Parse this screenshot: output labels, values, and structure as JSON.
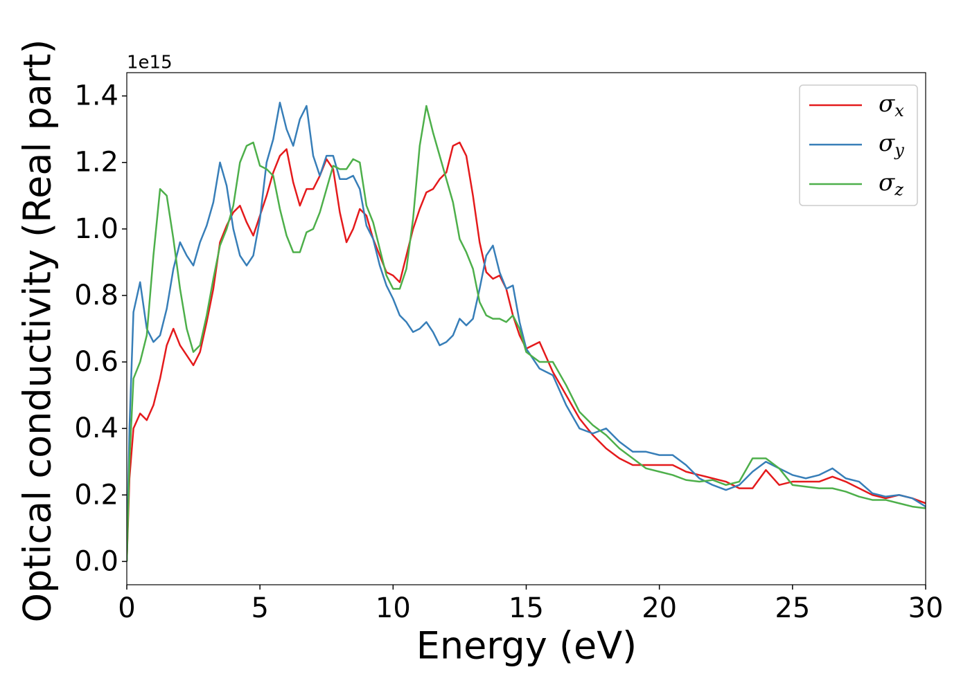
{
  "chart_data": {
    "type": "line",
    "xlabel": "Energy (eV)",
    "ylabel": "Optical conductivity (Real part)",
    "y_offset_label": "1e15",
    "x": [
      0,
      0.1,
      0.25,
      0.5,
      0.75,
      1,
      1.25,
      1.5,
      1.75,
      2,
      2.25,
      2.5,
      2.75,
      3,
      3.25,
      3.5,
      3.75,
      4,
      4.25,
      4.5,
      4.75,
      5,
      5.25,
      5.5,
      5.75,
      6,
      6.25,
      6.5,
      6.75,
      7,
      7.25,
      7.5,
      7.75,
      8,
      8.25,
      8.5,
      8.75,
      9,
      9.25,
      9.5,
      9.75,
      10,
      10.25,
      10.5,
      10.75,
      11,
      11.25,
      11.5,
      11.75,
      12,
      12.25,
      12.5,
      12.75,
      13,
      13.25,
      13.5,
      13.75,
      14,
      14.25,
      14.5,
      14.75,
      15,
      15.5,
      16,
      16.5,
      17,
      17.5,
      18,
      18.5,
      19,
      19.5,
      20,
      20.5,
      21,
      21.5,
      22,
      22.5,
      23,
      23.5,
      24,
      24.5,
      25,
      25.5,
      26,
      26.5,
      27,
      27.5,
      28,
      28.5,
      29,
      29.5,
      30
    ],
    "series": [
      {
        "name": "σx",
        "color": "#e41a1c",
        "values": [
          0,
          0.25,
          0.4,
          0.445,
          0.425,
          0.47,
          0.55,
          0.65,
          0.7,
          0.65,
          0.62,
          0.59,
          0.63,
          0.72,
          0.82,
          0.96,
          1.01,
          1.05,
          1.07,
          1.02,
          0.98,
          1.04,
          1.1,
          1.17,
          1.22,
          1.24,
          1.14,
          1.07,
          1.12,
          1.12,
          1.16,
          1.21,
          1.18,
          1.05,
          0.96,
          1.0,
          1.06,
          1.04,
          0.97,
          0.92,
          0.87,
          0.86,
          0.84,
          0.92,
          1.0,
          1.06,
          1.11,
          1.12,
          1.15,
          1.17,
          1.25,
          1.26,
          1.22,
          1.1,
          0.96,
          0.87,
          0.85,
          0.86,
          0.82,
          0.74,
          0.68,
          0.64,
          0.66,
          0.57,
          0.5,
          0.43,
          0.38,
          0.34,
          0.31,
          0.29,
          0.29,
          0.29,
          0.29,
          0.27,
          0.26,
          0.25,
          0.24,
          0.22,
          0.22,
          0.275,
          0.23,
          0.24,
          0.24,
          0.24,
          0.255,
          0.24,
          0.22,
          0.2,
          0.19,
          0.2,
          0.19,
          0.175
        ]
      },
      {
        "name": "σy",
        "color": "#377eb8",
        "values": [
          0,
          0.4,
          0.75,
          0.84,
          0.7,
          0.66,
          0.68,
          0.76,
          0.88,
          0.96,
          0.92,
          0.89,
          0.96,
          1.01,
          1.08,
          1.2,
          1.13,
          1.0,
          0.92,
          0.89,
          0.92,
          1.03,
          1.2,
          1.27,
          1.38,
          1.3,
          1.25,
          1.33,
          1.37,
          1.22,
          1.16,
          1.22,
          1.22,
          1.15,
          1.15,
          1.16,
          1.12,
          1.01,
          0.97,
          0.89,
          0.83,
          0.79,
          0.74,
          0.72,
          0.69,
          0.7,
          0.72,
          0.69,
          0.65,
          0.66,
          0.68,
          0.73,
          0.71,
          0.73,
          0.82,
          0.92,
          0.95,
          0.87,
          0.82,
          0.83,
          0.72,
          0.64,
          0.58,
          0.56,
          0.47,
          0.4,
          0.385,
          0.4,
          0.36,
          0.33,
          0.33,
          0.32,
          0.32,
          0.29,
          0.25,
          0.23,
          0.215,
          0.23,
          0.27,
          0.3,
          0.28,
          0.26,
          0.25,
          0.26,
          0.28,
          0.25,
          0.24,
          0.205,
          0.195,
          0.2,
          0.19,
          0.165
        ]
      },
      {
        "name": "σz",
        "color": "#4daf4a",
        "values": [
          0,
          0.3,
          0.55,
          0.6,
          0.68,
          0.92,
          1.12,
          1.1,
          0.97,
          0.82,
          0.7,
          0.63,
          0.65,
          0.74,
          0.85,
          0.95,
          1.0,
          1.07,
          1.2,
          1.25,
          1.26,
          1.19,
          1.18,
          1.16,
          1.06,
          0.98,
          0.93,
          0.93,
          0.99,
          1.0,
          1.05,
          1.12,
          1.19,
          1.18,
          1.18,
          1.21,
          1.2,
          1.07,
          1.02,
          0.94,
          0.86,
          0.82,
          0.82,
          0.88,
          1.03,
          1.25,
          1.37,
          1.29,
          1.22,
          1.15,
          1.08,
          0.97,
          0.93,
          0.88,
          0.78,
          0.74,
          0.73,
          0.73,
          0.72,
          0.74,
          0.7,
          0.63,
          0.6,
          0.6,
          0.53,
          0.45,
          0.41,
          0.38,
          0.34,
          0.31,
          0.28,
          0.27,
          0.26,
          0.245,
          0.24,
          0.245,
          0.23,
          0.24,
          0.31,
          0.31,
          0.28,
          0.23,
          0.225,
          0.22,
          0.22,
          0.21,
          0.195,
          0.185,
          0.185,
          0.175,
          0.165,
          0.16
        ]
      }
    ],
    "xlim": [
      0,
      30
    ],
    "xticks": [
      0,
      5,
      10,
      15,
      20,
      25,
      30
    ],
    "ylim": [
      -0.07,
      1.47
    ],
    "yticks": [
      {
        "value": 0,
        "label": "0.0"
      },
      0.2,
      0.4,
      0.6,
      0.8,
      {
        "value": 1,
        "label": "1.0"
      },
      1.2,
      1.4
    ],
    "grid": false,
    "legend": "upper right"
  }
}
